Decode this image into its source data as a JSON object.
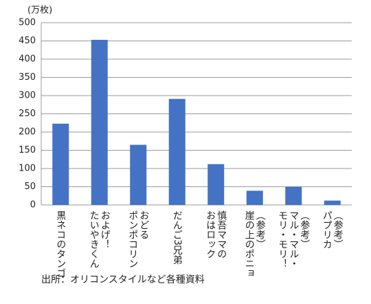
{
  "chart_data": {
    "type": "bar",
    "y_label": "(万枚)",
    "categories": [
      "黒ネコのタンゴ",
      "およげ！\nたいやきくん",
      "おどる\nポンポコリン",
      "だんご3兄弟",
      "慎吾ママの\nおはロック",
      "（参考）\n崖の上のポニョ",
      "（参考）\nマル・マル・\nモリ・モリ！",
      "（参考）\nパプリカ"
    ],
    "values": [
      223,
      453,
      165,
      291,
      112,
      39,
      50,
      12
    ],
    "color": "#4472c4",
    "ylim": [
      0,
      500
    ],
    "yticks": [
      0,
      50,
      100,
      150,
      200,
      250,
      300,
      350,
      400,
      450,
      500
    ],
    "grid": true,
    "source": "出所：オリコンスタイルなど各種資料"
  }
}
